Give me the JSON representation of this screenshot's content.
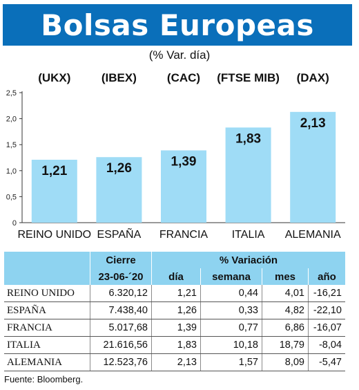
{
  "header": {
    "title": "Bolsas Europeas",
    "subtitle": "(% Var. día)"
  },
  "colors": {
    "banner": "#0a6fba",
    "bar": "#9fdcf6",
    "table_header": "#8ed3f0"
  },
  "chart_data": {
    "type": "bar",
    "tickers": [
      "(UKX)",
      "(IBEX)",
      "(CAC)",
      "(FTSE MIB)",
      "(DAX)"
    ],
    "categories": [
      "REINO UNIDO",
      "ESPAÑA",
      "FRANCIA",
      "ITALIA",
      "ALEMANIA"
    ],
    "values": [
      1.21,
      1.26,
      1.39,
      1.83,
      2.13
    ],
    "value_labels": [
      "1,21",
      "1,26",
      "1,39",
      "1,83",
      "2,13"
    ],
    "yticks": [
      0,
      0.5,
      1.0,
      1.5,
      2.0,
      2.5
    ],
    "ytick_labels": [
      "0",
      "0,5",
      "1,0",
      "1,5",
      "2,0",
      "2,5"
    ],
    "ylim": [
      0,
      2.5
    ],
    "grid": false
  },
  "table": {
    "group_headers": [
      "Cierre",
      "% Variación"
    ],
    "date_label": "23-06-´20",
    "columns": [
      "día",
      "semana",
      "mes",
      "año"
    ],
    "rows": [
      {
        "name": "REINO UNIDO",
        "cierre": "6.320,12",
        "dia": "1,21",
        "semana": "0,44",
        "mes": "4,01",
        "ano": "-16,21"
      },
      {
        "name": "ESPAÑA",
        "cierre": "7.438,40",
        "dia": "1,26",
        "semana": "0,33",
        "mes": "4,82",
        "ano": "-22,10"
      },
      {
        "name": "FRANCIA",
        "cierre": "5.017,68",
        "dia": "1,39",
        "semana": "0,77",
        "mes": "6,86",
        "ano": "-16,07"
      },
      {
        "name": "ITALIA",
        "cierre": "21.616,56",
        "dia": "1,83",
        "semana": "10,18",
        "mes": "18,79",
        "ano": "-8,04"
      },
      {
        "name": "ALEMANIA",
        "cierre": "12.523,76",
        "dia": "2,13",
        "semana": "1,57",
        "mes": "8,09",
        "ano": "-5,47"
      }
    ]
  },
  "source": "Fuente: Bloomberg."
}
